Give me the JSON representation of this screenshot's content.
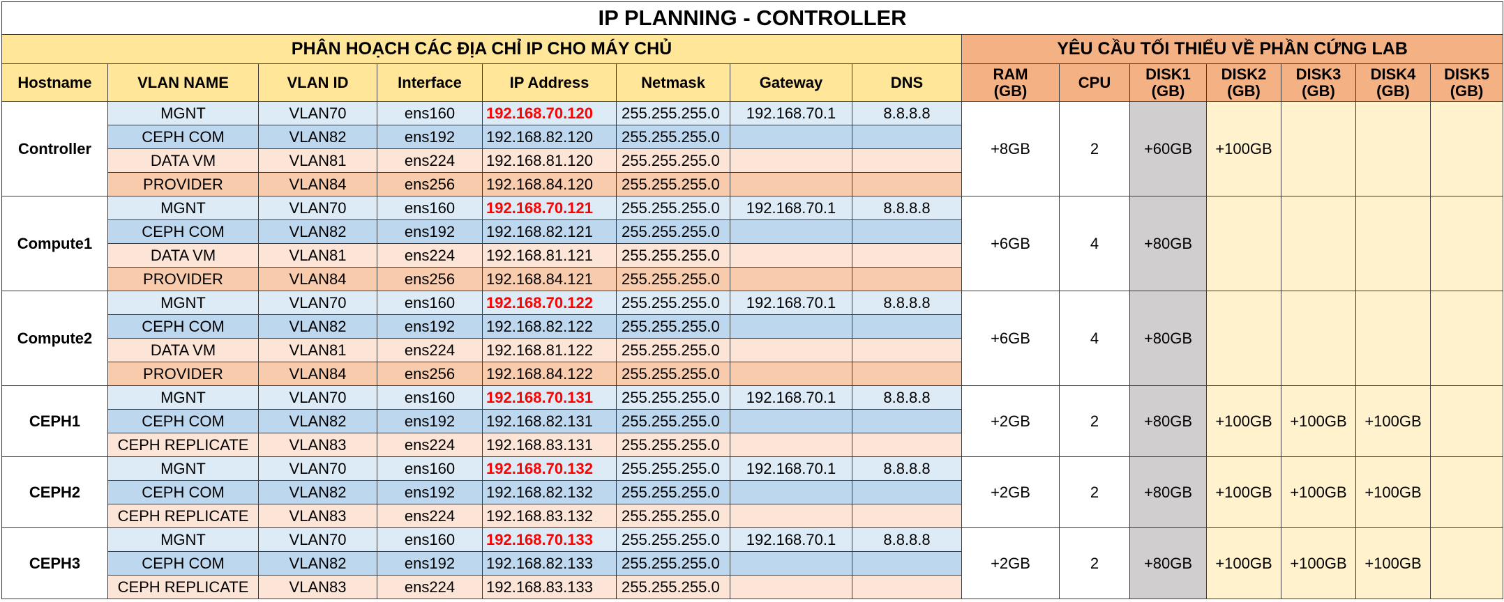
{
  "title": "IP PLANNING - CONTROLLER",
  "ip_section_title": "PHÂN HOẠCH CÁC ĐỊA CHỈ IP CHO MÁY CHỦ",
  "hw_section_title": "YÊU CẦU TỐI THIỂU VỀ PHẦN CỨNG LAB",
  "ip_headers": [
    "Hostname",
    "VLAN NAME",
    "VLAN ID",
    "Interface",
    "IP Address",
    "Netmask",
    "Gateway",
    "DNS"
  ],
  "hw_headers": [
    "RAM\n(GB)",
    "CPU",
    "DISK1\n(GB)",
    "DISK2\n(GB)",
    "DISK3\n(GB)",
    "DISK4\n(GB)",
    "DISK5\n(GB)"
  ],
  "hosts": [
    {
      "hostname": "Controller",
      "rows": [
        {
          "vlan_name": "MGNT",
          "vlan_id": "VLAN70",
          "interface": "ens160",
          "ip": "192.168.70.120",
          "netmask": "255.255.255.0",
          "gateway": "192.168.70.1",
          "dns": "8.8.8.8"
        },
        {
          "vlan_name": "CEPH COM",
          "vlan_id": "VLAN82",
          "interface": "ens192",
          "ip": "192.168.82.120",
          "netmask": "255.255.255.0",
          "gateway": "",
          "dns": ""
        },
        {
          "vlan_name": "DATA VM",
          "vlan_id": "VLAN81",
          "interface": "ens224",
          "ip": "192.168.81.120",
          "netmask": "255.255.255.0",
          "gateway": "",
          "dns": ""
        },
        {
          "vlan_name": "PROVIDER",
          "vlan_id": "VLAN84",
          "interface": "ens256",
          "ip": "192.168.84.120",
          "netmask": "255.255.255.0",
          "gateway": "",
          "dns": ""
        }
      ],
      "hw": {
        "ram": "+8GB",
        "cpu": "2",
        "disk1": "+60GB",
        "disk2": "+100GB",
        "disk3": "",
        "disk4": "",
        "disk5": ""
      }
    },
    {
      "hostname": "Compute1",
      "rows": [
        {
          "vlan_name": "MGNT",
          "vlan_id": "VLAN70",
          "interface": "ens160",
          "ip": "192.168.70.121",
          "netmask": "255.255.255.0",
          "gateway": "192.168.70.1",
          "dns": "8.8.8.8"
        },
        {
          "vlan_name": "CEPH COM",
          "vlan_id": "VLAN82",
          "interface": "ens192",
          "ip": "192.168.82.121",
          "netmask": "255.255.255.0",
          "gateway": "",
          "dns": ""
        },
        {
          "vlan_name": "DATA VM",
          "vlan_id": "VLAN81",
          "interface": "ens224",
          "ip": "192.168.81.121",
          "netmask": "255.255.255.0",
          "gateway": "",
          "dns": ""
        },
        {
          "vlan_name": "PROVIDER",
          "vlan_id": "VLAN84",
          "interface": "ens256",
          "ip": "192.168.84.121",
          "netmask": "255.255.255.0",
          "gateway": "",
          "dns": ""
        }
      ],
      "hw": {
        "ram": "+6GB",
        "cpu": "4",
        "disk1": "+80GB",
        "disk2": "",
        "disk3": "",
        "disk4": "",
        "disk5": ""
      }
    },
    {
      "hostname": "Compute2",
      "rows": [
        {
          "vlan_name": "MGNT",
          "vlan_id": "VLAN70",
          "interface": "ens160",
          "ip": "192.168.70.122",
          "netmask": "255.255.255.0",
          "gateway": "192.168.70.1",
          "dns": "8.8.8.8"
        },
        {
          "vlan_name": "CEPH COM",
          "vlan_id": "VLAN82",
          "interface": "ens192",
          "ip": "192.168.82.122",
          "netmask": "255.255.255.0",
          "gateway": "",
          "dns": ""
        },
        {
          "vlan_name": "DATA VM",
          "vlan_id": "VLAN81",
          "interface": "ens224",
          "ip": "192.168.81.122",
          "netmask": "255.255.255.0",
          "gateway": "",
          "dns": ""
        },
        {
          "vlan_name": "PROVIDER",
          "vlan_id": "VLAN84",
          "interface": "ens256",
          "ip": "192.168.84.122",
          "netmask": "255.255.255.0",
          "gateway": "",
          "dns": ""
        }
      ],
      "hw": {
        "ram": "+6GB",
        "cpu": "4",
        "disk1": "+80GB",
        "disk2": "",
        "disk3": "",
        "disk4": "",
        "disk5": ""
      }
    },
    {
      "hostname": "CEPH1",
      "rows": [
        {
          "vlan_name": "MGNT",
          "vlan_id": "VLAN70",
          "interface": "ens160",
          "ip": "192.168.70.131",
          "netmask": "255.255.255.0",
          "gateway": "192.168.70.1",
          "dns": "8.8.8.8"
        },
        {
          "vlan_name": "CEPH COM",
          "vlan_id": "VLAN82",
          "interface": "ens192",
          "ip": "192.168.82.131",
          "netmask": "255.255.255.0",
          "gateway": "",
          "dns": ""
        },
        {
          "vlan_name": "CEPH REPLICATE",
          "vlan_id": "VLAN83",
          "interface": "ens224",
          "ip": "192.168.83.131",
          "netmask": "255.255.255.0",
          "gateway": "",
          "dns": ""
        }
      ],
      "hw": {
        "ram": "+2GB",
        "cpu": "2",
        "disk1": "+80GB",
        "disk2": "+100GB",
        "disk3": "+100GB",
        "disk4": "+100GB",
        "disk5": ""
      }
    },
    {
      "hostname": "CEPH2",
      "rows": [
        {
          "vlan_name": "MGNT",
          "vlan_id": "VLAN70",
          "interface": "ens160",
          "ip": "192.168.70.132",
          "netmask": "255.255.255.0",
          "gateway": "192.168.70.1",
          "dns": "8.8.8.8"
        },
        {
          "vlan_name": "CEPH COM",
          "vlan_id": "VLAN82",
          "interface": "ens192",
          "ip": "192.168.82.132",
          "netmask": "255.255.255.0",
          "gateway": "",
          "dns": ""
        },
        {
          "vlan_name": "CEPH REPLICATE",
          "vlan_id": "VLAN83",
          "interface": "ens224",
          "ip": "192.168.83.132",
          "netmask": "255.255.255.0",
          "gateway": "",
          "dns": ""
        }
      ],
      "hw": {
        "ram": "+2GB",
        "cpu": "2",
        "disk1": "+80GB",
        "disk2": "+100GB",
        "disk3": "+100GB",
        "disk4": "+100GB",
        "disk5": ""
      }
    },
    {
      "hostname": "CEPH3",
      "rows": [
        {
          "vlan_name": "MGNT",
          "vlan_id": "VLAN70",
          "interface": "ens160",
          "ip": "192.168.70.133",
          "netmask": "255.255.255.0",
          "gateway": "192.168.70.1",
          "dns": "8.8.8.8"
        },
        {
          "vlan_name": "CEPH COM",
          "vlan_id": "VLAN82",
          "interface": "ens192",
          "ip": "192.168.82.133",
          "netmask": "255.255.255.0",
          "gateway": "",
          "dns": ""
        },
        {
          "vlan_name": "CEPH REPLICATE",
          "vlan_id": "VLAN83",
          "interface": "ens224",
          "ip": "192.168.83.133",
          "netmask": "255.255.255.0",
          "gateway": "",
          "dns": ""
        }
      ],
      "hw": {
        "ram": "+2GB",
        "cpu": "2",
        "disk1": "+80GB",
        "disk2": "+100GB",
        "disk3": "+100GB",
        "disk4": "+100GB",
        "disk5": ""
      }
    }
  ]
}
